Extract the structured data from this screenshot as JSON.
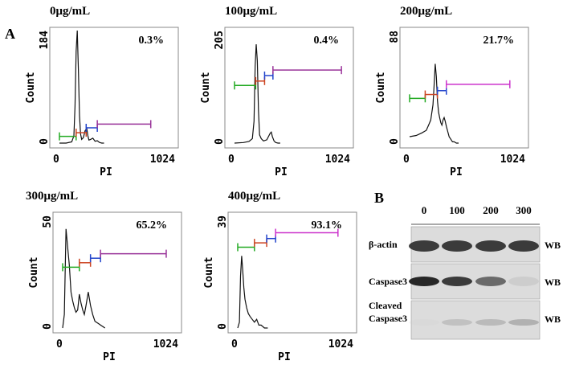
{
  "panel_a_label": "A",
  "panel_b_label": "B",
  "chart_data": [
    {
      "type": "line",
      "title": "0μg/mL",
      "percent": "0.3%",
      "xlabel": "PI",
      "ylabel": "Count",
      "x_ticks": [
        "0",
        "1024"
      ],
      "y_ticks": [
        "0",
        "184"
      ],
      "xlim": [
        0,
        1024
      ],
      "ylim": [
        0,
        184
      ],
      "series": [
        {
          "x": [
            0,
            60,
            110,
            130,
            140,
            150,
            160,
            170,
            180,
            190,
            200,
            215,
            230,
            245,
            255,
            265,
            280,
            300,
            320,
            340,
            360,
            380,
            400
          ],
          "y": [
            0,
            0,
            2,
            12,
            60,
            150,
            184,
            120,
            45,
            15,
            6,
            9,
            20,
            24,
            12,
            5,
            6,
            8,
            3,
            4,
            1,
            0,
            0
          ]
        }
      ],
      "gates": [
        {
          "color": "#22aa22",
          "x0": 0,
          "x1": 150,
          "y": 11
        },
        {
          "color": "#cc4422",
          "x0": 150,
          "x1": 240,
          "y": 17
        },
        {
          "color": "#2244cc",
          "x0": 240,
          "x1": 340,
          "y": 25
        },
        {
          "color": "#993399",
          "x0": 340,
          "x1": 820,
          "y": 31
        }
      ]
    },
    {
      "type": "line",
      "title": "100μg/mL",
      "percent": "0.4%",
      "xlabel": "PI",
      "ylabel": "Count",
      "x_ticks": [
        "0",
        "1024"
      ],
      "y_ticks": [
        "0",
        "205"
      ],
      "xlim": [
        0,
        1024
      ],
      "ylim": [
        0,
        205
      ],
      "series": [
        {
          "x": [
            0,
            80,
            130,
            160,
            175,
            185,
            195,
            205,
            215,
            225,
            240,
            260,
            290,
            320,
            330,
            340,
            355,
            370,
            390,
            410
          ],
          "y": [
            0,
            1,
            3,
            8,
            40,
            140,
            180,
            150,
            60,
            15,
            8,
            4,
            6,
            18,
            20,
            12,
            4,
            1,
            0,
            0
          ]
        }
      ],
      "gates": [
        {
          "color": "#22aa22",
          "x0": 0,
          "x1": 190,
          "y": 105
        },
        {
          "color": "#cc4422",
          "x0": 190,
          "x1": 270,
          "y": 113
        },
        {
          "color": "#2244cc",
          "x0": 270,
          "x1": 345,
          "y": 123
        },
        {
          "color": "#993399",
          "x0": 345,
          "x1": 960,
          "y": 133
        }
      ]
    },
    {
      "type": "line",
      "title": "200μg/mL",
      "percent": "21.7%",
      "xlabel": "PI",
      "ylabel": "Count",
      "x_ticks": [
        "0",
        "1024"
      ],
      "y_ticks": [
        "0",
        "88"
      ],
      "xlim": [
        0,
        1024
      ],
      "ylim": [
        0,
        88
      ],
      "series": [
        {
          "x": [
            0,
            60,
            110,
            150,
            170,
            190,
            210,
            220,
            230,
            240,
            250,
            260,
            270,
            280,
            290,
            300,
            310,
            320,
            330,
            340,
            355,
            370,
            385,
            400,
            420,
            440
          ],
          "y": [
            5,
            6,
            8,
            10,
            14,
            18,
            30,
            45,
            62,
            52,
            33,
            24,
            20,
            16,
            14,
            18,
            20,
            17,
            13,
            10,
            5,
            3,
            1,
            1,
            0,
            0
          ]
        }
      ],
      "gates": [
        {
          "color": "#22aa22",
          "x0": 0,
          "x1": 140,
          "y": 35
        },
        {
          "color": "#cc4422",
          "x0": 140,
          "x1": 250,
          "y": 38
        },
        {
          "color": "#2244cc",
          "x0": 250,
          "x1": 330,
          "y": 41
        },
        {
          "color": "#cc33cc",
          "x0": 330,
          "x1": 900,
          "y": 46
        }
      ]
    },
    {
      "type": "line",
      "title": "300μg/mL",
      "percent": "65.2%",
      "xlabel": "PI",
      "ylabel": "Count",
      "x_ticks": [
        "0",
        "1024"
      ],
      "y_ticks": [
        "0",
        "50"
      ],
      "xlim": [
        0,
        1024
      ],
      "ylim": [
        0,
        50
      ],
      "series": [
        {
          "x": [
            0,
            15,
            30,
            45,
            60,
            75,
            90,
            105,
            120,
            135,
            150,
            165,
            180,
            195,
            210,
            230,
            250,
            270,
            290,
            320,
            350,
            380
          ],
          "y": [
            0,
            6,
            44,
            36,
            28,
            16,
            12,
            9,
            7,
            8,
            15,
            11,
            8,
            6,
            10,
            16,
            10,
            6,
            3,
            2,
            1,
            0
          ]
        }
      ],
      "gates": [
        {
          "color": "#22aa22",
          "x0": 0,
          "x1": 150,
          "y": 27
        },
        {
          "color": "#cc4422",
          "x0": 150,
          "x1": 250,
          "y": 29
        },
        {
          "color": "#2244cc",
          "x0": 250,
          "x1": 340,
          "y": 31
        },
        {
          "color": "#993399",
          "x0": 340,
          "x1": 930,
          "y": 33
        }
      ]
    },
    {
      "type": "line",
      "title": "400μg/mL",
      "percent": "93.1%",
      "xlabel": "PI",
      "ylabel": "Count",
      "x_ticks": [
        "0",
        "1024"
      ],
      "y_ticks": [
        "0",
        "39"
      ],
      "xlim": [
        0,
        1024
      ],
      "ylim": [
        0,
        39
      ],
      "series": [
        {
          "x": [
            0,
            15,
            25,
            35,
            45,
            55,
            65,
            80,
            95,
            110,
            130,
            150,
            170,
            190,
            210,
            240,
            270
          ],
          "y": [
            0,
            2,
            18,
            25,
            20,
            14,
            10,
            7,
            5,
            4,
            3,
            2,
            3,
            1,
            1,
            0,
            0
          ]
        }
      ],
      "gates": [
        {
          "color": "#22aa22",
          "x0": 0,
          "x1": 150,
          "y": 28
        },
        {
          "color": "#cc4422",
          "x0": 150,
          "x1": 260,
          "y": 29.5
        },
        {
          "color": "#2244cc",
          "x0": 260,
          "x1": 340,
          "y": 31
        },
        {
          "color": "#cc33cc",
          "x0": 340,
          "x1": 900,
          "y": 33
        }
      ]
    }
  ],
  "western_blot": {
    "doses": [
      "0",
      "100",
      "200",
      "300"
    ],
    "rows": [
      {
        "label": "β-actin",
        "tag": "WB",
        "intensity": [
          0.85,
          0.85,
          0.85,
          0.85
        ]
      },
      {
        "label": "Caspase3",
        "tag": "WB",
        "intensity": [
          0.9,
          0.85,
          0.7,
          0.2
        ]
      },
      {
        "label_lines": [
          "Cleaved",
          "Caspase3"
        ],
        "tag": "WB",
        "intensity": [
          0.05,
          0.3,
          0.35,
          0.4
        ]
      }
    ]
  }
}
